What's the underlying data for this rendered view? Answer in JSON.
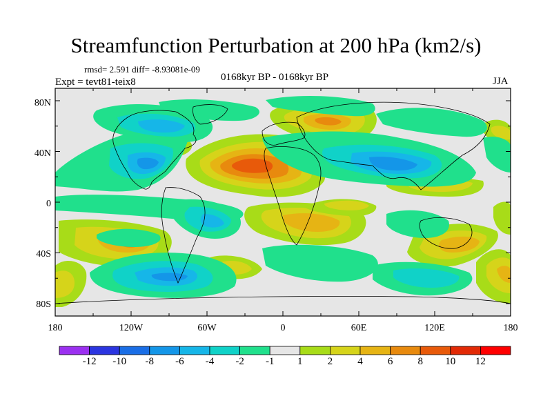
{
  "title": "Streamfunction Perturbation at 200 hPa (km2/s)",
  "stats": "rmsd= 2.591 diff= -8.93081e-09",
  "experiment": "Expt = tevt81-teix8",
  "period": "0168kyr BP - 0168kyr BP",
  "season": "JJA",
  "map": {
    "lat_labels": [
      "80N",
      "40N",
      "0",
      "40S",
      "80S"
    ],
    "lon_labels": [
      "180",
      "120W",
      "60W",
      "0",
      "60E",
      "120E",
      "180"
    ],
    "background_color": "#e6e6e6"
  },
  "colorbar": {
    "labels": [
      "-12",
      "-10",
      "-8",
      "-6",
      "-4",
      "-2",
      "-1",
      "1",
      "2",
      "4",
      "6",
      "8",
      "10",
      "12"
    ],
    "colors": [
      "#9b30f0",
      "#2b35e0",
      "#1a6ee6",
      "#1496e8",
      "#16b6e8",
      "#10d2c8",
      "#20e08c",
      "#e6e6e6",
      "#a8dc18",
      "#d6d41a",
      "#e6b414",
      "#e88a0e",
      "#e85a0a",
      "#e22a06",
      "#ff0000"
    ]
  }
}
